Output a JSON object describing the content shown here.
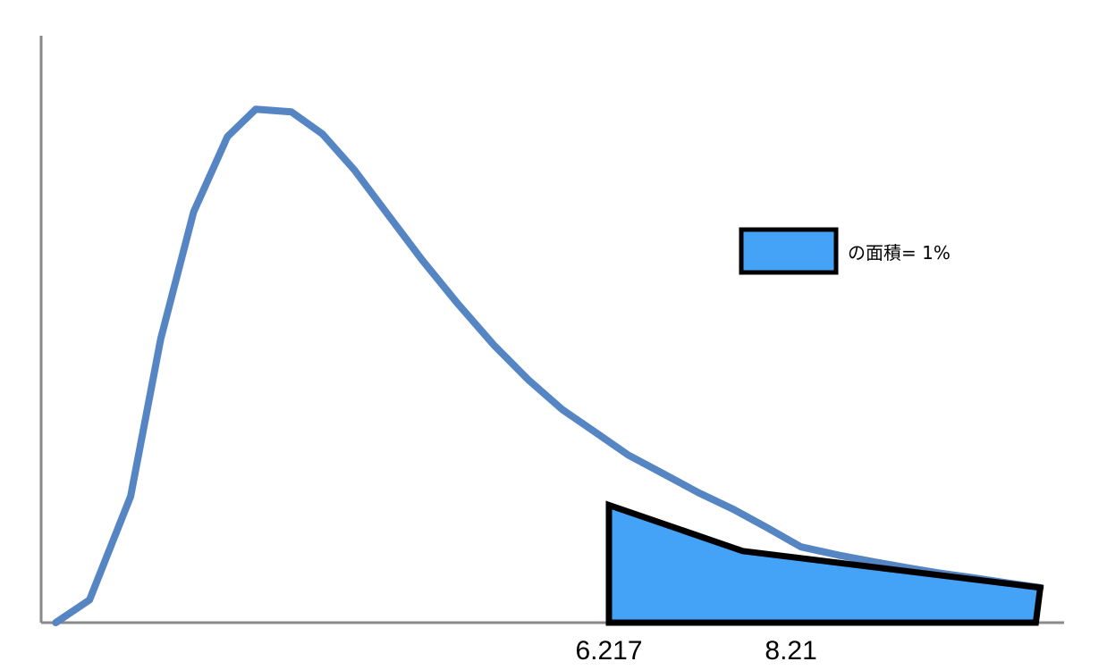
{
  "chart_data": {
    "type": "area",
    "title": "",
    "xlabel": "",
    "ylabel": "",
    "grid": false,
    "x_ticks": [
      "6.217",
      "8.21"
    ],
    "x_tick_values": [
      6.217,
      8.21
    ],
    "xlim": [
      0,
      11.2
    ],
    "ylim": [
      0,
      1.0
    ],
    "series": [
      {
        "values": [
          [
            0.16,
            0.0
          ],
          [
            0.53,
            0.044
          ],
          [
            0.98,
            0.245
          ],
          [
            1.31,
            0.551
          ],
          [
            1.67,
            0.797
          ],
          [
            2.04,
            0.943
          ],
          [
            2.35,
            0.996
          ],
          [
            2.74,
            0.991
          ],
          [
            3.08,
            0.948
          ],
          [
            3.43,
            0.878
          ],
          [
            3.8,
            0.791
          ],
          [
            4.17,
            0.704
          ],
          [
            4.56,
            0.619
          ],
          [
            4.96,
            0.538
          ],
          [
            5.33,
            0.472
          ],
          [
            5.71,
            0.413
          ],
          [
            6.08,
            0.368
          ],
          [
            6.43,
            0.325
          ],
          [
            6.81,
            0.289
          ],
          [
            7.2,
            0.252
          ],
          [
            7.58,
            0.22
          ],
          [
            7.95,
            0.184
          ],
          [
            8.32,
            0.147
          ],
          [
            8.73,
            0.131
          ],
          [
            9.12,
            0.118
          ],
          [
            9.47,
            0.107
          ],
          [
            9.84,
            0.096
          ],
          [
            10.21,
            0.087
          ],
          [
            10.58,
            0.077
          ],
          [
            10.94,
            0.068
          ]
        ],
        "color": "#5585C3"
      }
    ],
    "shaded_region": {
      "x_start": 6.217,
      "x_end": 10.94,
      "fill_color": "#44A3F7",
      "outline_color": "#000000",
      "outline_points": [
        [
          6.217,
          0.228
        ],
        [
          7.68,
          0.139
        ],
        [
          10.94,
          0.068
        ]
      ]
    },
    "legend": {
      "placement": "top-right",
      "text": "の面積= 1%",
      "swatch_color": "#44A3F7"
    }
  }
}
